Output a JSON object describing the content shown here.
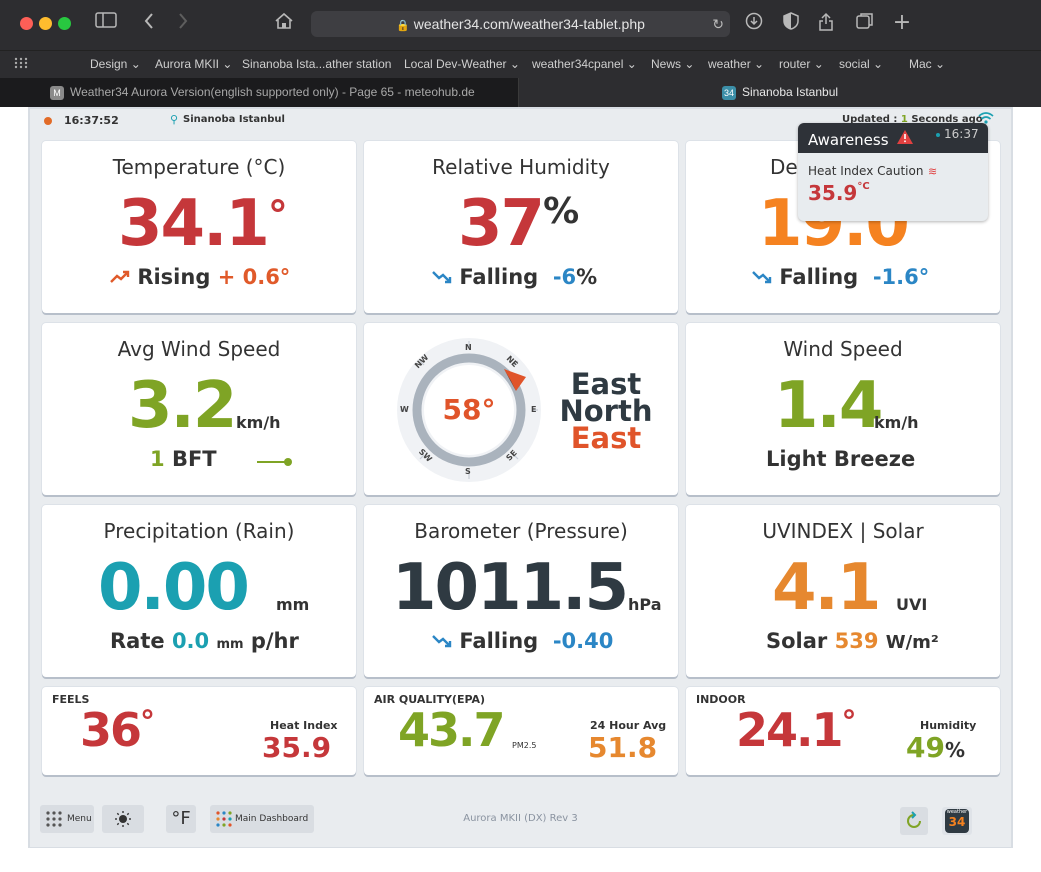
{
  "browser": {
    "url": "weather34.com/weather34-tablet.php",
    "bookmarks": [
      "Design",
      "Aurora MKII",
      "Sinanoba Ista...ather station",
      "Local Dev-Weather",
      "weather34cpanel",
      "News",
      "weather",
      "router",
      "social",
      "Mac"
    ],
    "tabs": [
      {
        "title": "Weather34 Aurora Version(english supported only) - Page 65 - meteohub.de",
        "favicon": "M"
      },
      {
        "title": "Sinanoba Istanbul",
        "favicon": "34"
      }
    ]
  },
  "status": {
    "time": "16:37:52",
    "location": "Sinanoba Istanbul",
    "updated_label": "Updated :",
    "updated_value": "1",
    "updated_unit": "Seconds ago"
  },
  "awareness": {
    "title": "Awareness",
    "time": "16:37",
    "alert_label": "Heat Index Caution",
    "alert_value": "35.9",
    "alert_unit": "°C"
  },
  "temperature": {
    "title": "Temperature (°C)",
    "value": "34.1",
    "degree": "°",
    "trend_label": "Rising",
    "trend_sign": "+",
    "trend_value": "0.6°"
  },
  "humidity": {
    "title": "Relative Humidity",
    "value": "37",
    "unit": "%",
    "trend_label": "Falling",
    "trend_value": "-6",
    "trend_unit": "%"
  },
  "dewpoint": {
    "title": "Dewpoint",
    "title_visible": "De",
    "value": "19.0",
    "trend_label": "Falling",
    "trend_value": "-1.6°"
  },
  "avg_wind": {
    "title": "Avg Wind Speed",
    "value": "3.2",
    "unit": "km/h",
    "bft_value": "1",
    "bft_label": "BFT"
  },
  "compass": {
    "degrees": "58°",
    "dir_line1": "East",
    "dir_line2": "North",
    "dir_line3": "East",
    "labels": {
      "n": "N",
      "ne": "NE",
      "e": "E",
      "se": "SE",
      "s": "S",
      "sw": "SW",
      "w": "W",
      "nw": "NW"
    }
  },
  "wind_speed": {
    "title": "Wind Speed",
    "value": "1.4",
    "unit": "km/h",
    "description": "Light Breeze"
  },
  "rain": {
    "title": "Precipitation (Rain)",
    "value": "0.00",
    "unit": "mm",
    "rate_label": "Rate",
    "rate_value": "0.0",
    "rate_unit_small": "mm",
    "rate_unit": "p/hr"
  },
  "barometer": {
    "title": "Barometer (Pressure)",
    "value": "1011.5",
    "unit": "hPa",
    "trend_label": "Falling",
    "trend_value": "-0.40"
  },
  "uv": {
    "title": "UVINDEX | Solar",
    "value": "4.1",
    "unit": "UVI",
    "solar_label": "Solar",
    "solar_value": "539",
    "solar_unit": "W/m²"
  },
  "feels": {
    "title": "FEELS",
    "value": "36",
    "degree": "°",
    "sub_label": "Heat Index",
    "sub_value": "35.9"
  },
  "air_quality": {
    "title": "AIR QUALITY(EPA)",
    "value": "43.7",
    "unit": "PM2.5",
    "sub_label": "24 Hour Avg",
    "sub_value": "51.8"
  },
  "indoor": {
    "title": "INDOOR",
    "value": "24.1",
    "degree": "°",
    "sub_label": "Humidity",
    "sub_value": "49",
    "sub_unit": "%"
  },
  "footer": {
    "menu_label": "Menu",
    "unit_toggle": "°F",
    "dashboard_label": "Main Dashboard",
    "version": "Aurora MKII (DX) Rev 3",
    "logo_top": "weather",
    "logo_num": "34"
  },
  "colors": {
    "red": "#c5373a",
    "orange": "#f58220",
    "green": "#7fa425",
    "teal": "#1ba0b1",
    "blue": "#2b86c5",
    "darkorange": "#e6882f",
    "dark": "#2f3a42"
  }
}
